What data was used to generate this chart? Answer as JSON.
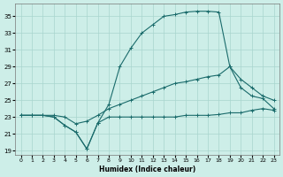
{
  "xlabel": "Humidex (Indice chaleur)",
  "background_color": "#cdeee8",
  "grid_color": "#a8d5ce",
  "line_color": "#1a6b6b",
  "xlim": [
    -0.5,
    23.5
  ],
  "ylim": [
    18.5,
    36.5
  ],
  "yticks": [
    19,
    21,
    23,
    25,
    27,
    29,
    31,
    33,
    35
  ],
  "xticks": [
    0,
    1,
    2,
    3,
    4,
    5,
    6,
    7,
    8,
    9,
    10,
    11,
    12,
    13,
    14,
    15,
    16,
    17,
    18,
    19,
    20,
    21,
    22,
    23
  ],
  "series_min_x": [
    0,
    1,
    2,
    3,
    4,
    5,
    6,
    7,
    8,
    9,
    10,
    11,
    12,
    13,
    14,
    15,
    16,
    17,
    18,
    19,
    20,
    21,
    22,
    23
  ],
  "series_min_y": [
    23.2,
    23.2,
    23.2,
    23.0,
    22.0,
    21.2,
    19.2,
    22.3,
    23.0,
    23.0,
    23.0,
    23.0,
    23.0,
    23.0,
    23.0,
    23.2,
    23.2,
    23.2,
    23.3,
    23.5,
    23.5,
    23.8,
    24.0,
    23.8
  ],
  "series_max_x": [
    0,
    1,
    2,
    3,
    4,
    5,
    6,
    7,
    8,
    9,
    10,
    11,
    12,
    13,
    14,
    15,
    16,
    17,
    18,
    19,
    20,
    21,
    22,
    23
  ],
  "series_max_y": [
    23.2,
    23.2,
    23.2,
    23.0,
    22.0,
    21.2,
    19.2,
    22.3,
    24.5,
    29.0,
    31.2,
    33.0,
    34.0,
    35.0,
    35.2,
    35.5,
    35.6,
    35.6,
    35.5,
    29.0,
    26.5,
    25.5,
    25.2,
    24.0
  ],
  "series_avg_x": [
    0,
    1,
    2,
    3,
    4,
    5,
    6,
    7,
    8,
    9,
    10,
    11,
    12,
    13,
    14,
    15,
    16,
    17,
    18,
    19,
    20,
    21,
    22,
    23
  ],
  "series_avg_y": [
    23.2,
    23.2,
    23.2,
    23.2,
    23.0,
    22.2,
    22.5,
    23.2,
    24.0,
    24.5,
    25.0,
    25.5,
    26.0,
    26.5,
    27.0,
    27.2,
    27.5,
    27.8,
    28.0,
    29.0,
    27.5,
    26.5,
    25.5,
    25.0
  ]
}
